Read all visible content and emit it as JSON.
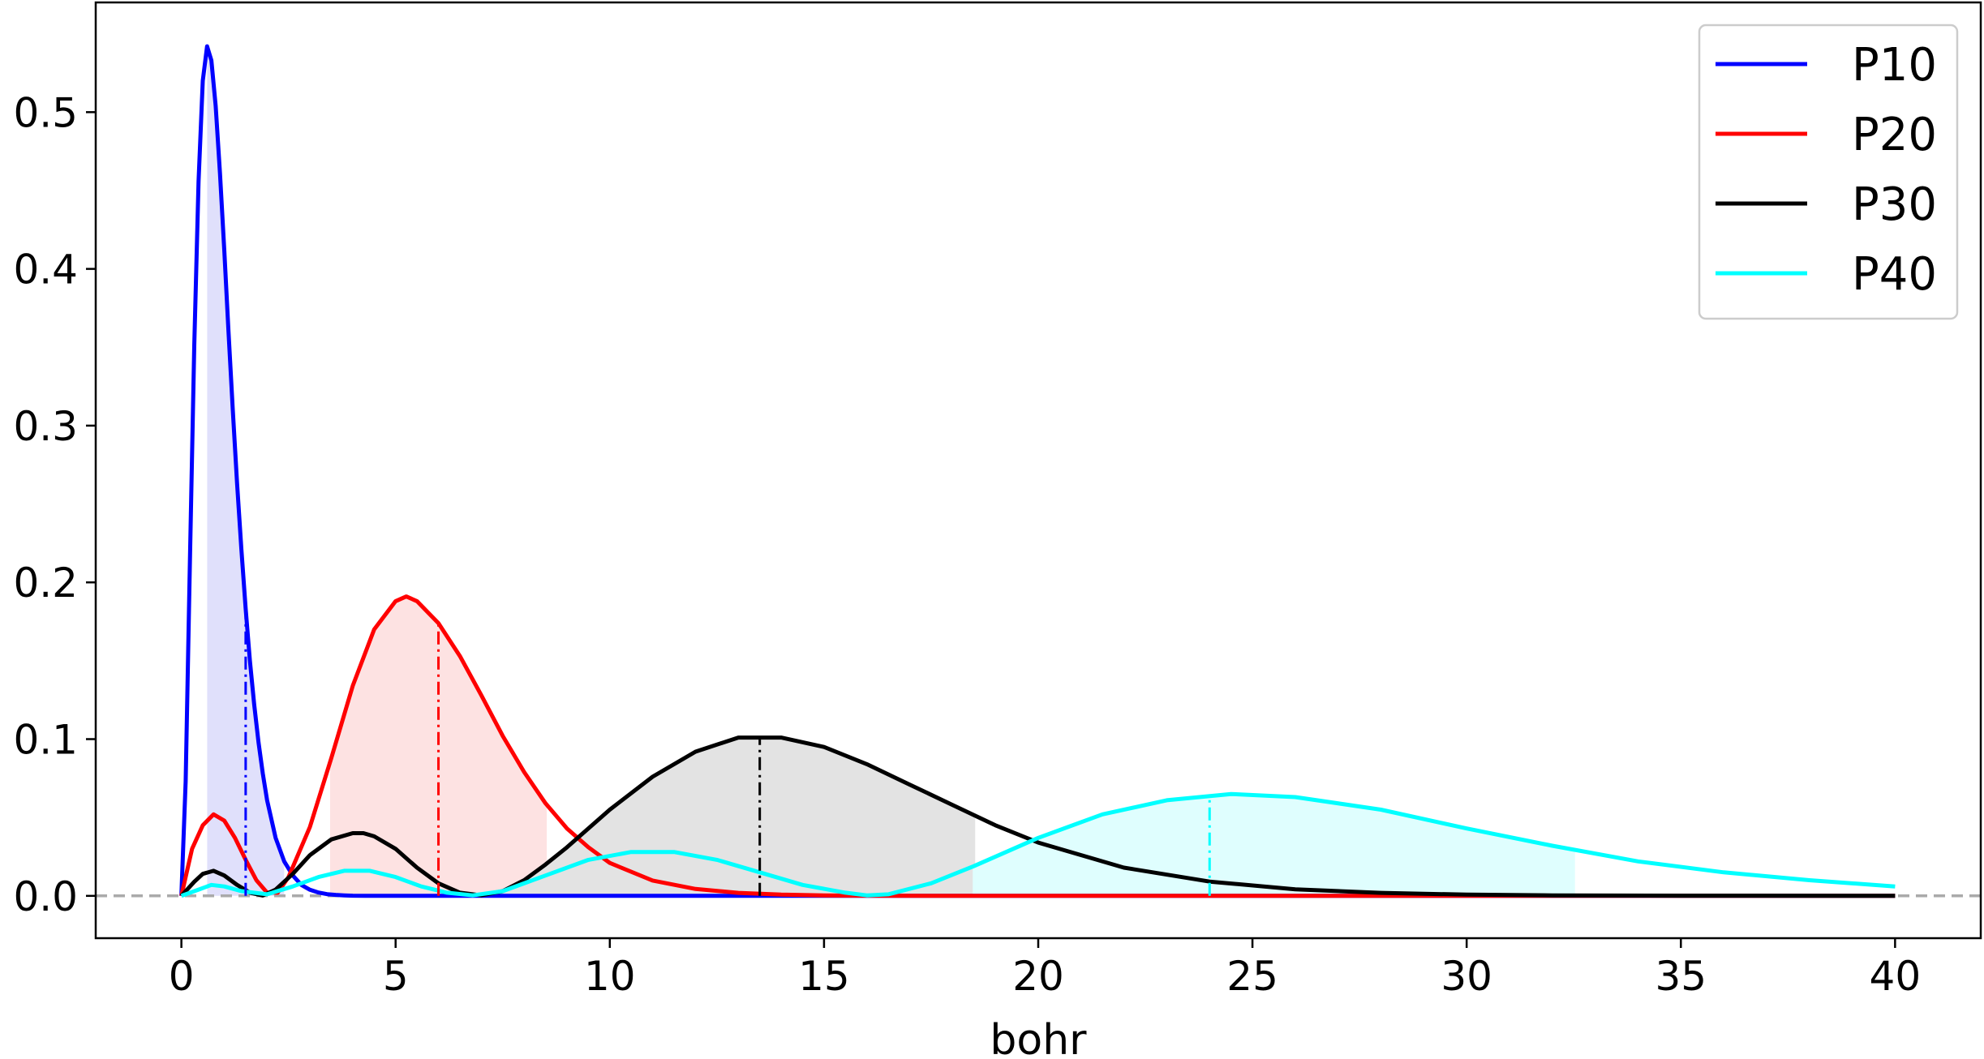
{
  "chart_data": {
    "type": "line",
    "title": "",
    "xlabel": "bohr",
    "ylabel": "",
    "xlim": [
      -2,
      42
    ],
    "ylim": [
      -0.027,
      0.57
    ],
    "xticks": [
      0,
      5,
      10,
      15,
      20,
      25,
      30,
      35,
      40
    ],
    "xtick_labels": [
      "0",
      "5",
      "10",
      "15",
      "20",
      "25",
      "30",
      "35",
      "40"
    ],
    "yticks": [
      0.0,
      0.1,
      0.2,
      0.3,
      0.4,
      0.5
    ],
    "ytick_labels": [
      "0.0",
      "0.1",
      "0.2",
      "0.3",
      "0.4",
      "0.5"
    ],
    "grid": false,
    "legend": "top-right",
    "zero_line": {
      "y": 0,
      "style": "dashed",
      "color": "#aaaaaa"
    },
    "series": [
      {
        "name": "P10",
        "color": "#0000ff",
        "fill": "#e0e0fb",
        "shade_range": [
          0.63,
          2.37
        ],
        "mean_marker_x": 1.5,
        "x": [
          0,
          0.1,
          0.2,
          0.3,
          0.4,
          0.5,
          0.6,
          0.7,
          0.8,
          0.9,
          1.0,
          1.1,
          1.2,
          1.3,
          1.4,
          1.5,
          1.6,
          1.7,
          1.8,
          1.9,
          2.0,
          2.2,
          2.4,
          2.6,
          2.8,
          3.0,
          3.2,
          3.4,
          3.6,
          3.8,
          4.0,
          4.3,
          4.6,
          5.0,
          5.5,
          6.0,
          7.0,
          8.0,
          10,
          15,
          20,
          25,
          30,
          35,
          40
        ],
        "y": [
          0,
          0.073,
          0.215,
          0.351,
          0.456,
          0.52,
          0.542,
          0.533,
          0.504,
          0.461,
          0.412,
          0.36,
          0.31,
          0.263,
          0.221,
          0.183,
          0.15,
          0.122,
          0.098,
          0.078,
          0.061,
          0.037,
          0.022,
          0.013,
          0.007,
          0.0039,
          0.0021,
          0.0011,
          0.0006,
          0.0003,
          0.0001,
          0,
          0,
          0,
          0,
          0,
          0,
          0,
          0,
          0,
          0,
          0,
          0,
          0,
          0
        ]
      },
      {
        "name": "P20",
        "color": "#ff0000",
        "fill": "#fde2e2",
        "shade_range": [
          3.5,
          8.5
        ],
        "mean_marker_x": 6.0,
        "x": [
          0,
          0.25,
          0.5,
          0.75,
          1.0,
          1.25,
          1.5,
          1.75,
          2.0,
          2.25,
          2.5,
          3.0,
          3.5,
          4.0,
          4.5,
          5.0,
          5.25,
          5.5,
          6.0,
          6.5,
          7.0,
          7.5,
          8.0,
          8.5,
          9.0,
          9.5,
          10.0,
          11.0,
          12.0,
          13.0,
          14.0,
          15.0,
          16.0,
          18.0,
          20.0,
          25,
          30,
          35,
          40
        ],
        "y": [
          0,
          0.03,
          0.045,
          0.052,
          0.048,
          0.037,
          0.023,
          0.01,
          0.002,
          0.002,
          0.012,
          0.044,
          0.088,
          0.134,
          0.17,
          0.188,
          0.191,
          0.188,
          0.174,
          0.153,
          0.128,
          0.102,
          0.079,
          0.059,
          0.043,
          0.031,
          0.021,
          0.0098,
          0.0044,
          0.0019,
          0.0008,
          0.0003,
          0.0001,
          0,
          0,
          0,
          0,
          0,
          0
        ]
      },
      {
        "name": "P30",
        "color": "#000000",
        "fill": "#e3e3e3",
        "shade_range": [
          7.0,
          18.5
        ],
        "mean_marker_x": 13.5,
        "x": [
          0,
          0.3,
          0.5,
          0.75,
          1.0,
          1.3,
          1.6,
          1.9,
          2.2,
          2.6,
          3.0,
          3.5,
          4.0,
          4.25,
          4.5,
          5.0,
          5.5,
          6.0,
          6.5,
          7.0,
          7.5,
          8.0,
          8.5,
          9.0,
          10.0,
          11.0,
          12.0,
          13.0,
          14.0,
          15.0,
          16.0,
          17.0,
          18.0,
          19.0,
          20.0,
          22.0,
          24.0,
          26.0,
          28.0,
          30.0,
          32.0,
          35.0,
          40.0
        ],
        "y": [
          0,
          0.009,
          0.014,
          0.016,
          0.013,
          0.007,
          0.002,
          0.0002,
          0.004,
          0.014,
          0.026,
          0.036,
          0.04,
          0.04,
          0.038,
          0.03,
          0.018,
          0.008,
          0.002,
          0.0003,
          0.003,
          0.01,
          0.02,
          0.031,
          0.055,
          0.076,
          0.092,
          0.101,
          0.101,
          0.095,
          0.084,
          0.071,
          0.058,
          0.045,
          0.034,
          0.018,
          0.0091,
          0.0042,
          0.0019,
          0.0008,
          0.0003,
          0.0001,
          0
        ]
      },
      {
        "name": "P40",
        "color": "#00ffff",
        "fill": "#dffefe",
        "shade_range": [
          18.5,
          32.5
        ],
        "mean_marker_x": 24.0,
        "x": [
          0,
          0.4,
          0.7,
          1.0,
          1.4,
          2.0,
          2.6,
          3.2,
          3.8,
          4.4,
          5.0,
          5.6,
          6.2,
          6.8,
          7.5,
          8.5,
          9.5,
          10.5,
          11.5,
          12.5,
          13.5,
          14.5,
          15.5,
          16.0,
          16.5,
          17.5,
          18.5,
          20.0,
          21.5,
          23.0,
          24.5,
          26.0,
          28.0,
          30.0,
          32.0,
          34.0,
          36.0,
          38.0,
          40.0
        ],
        "y": [
          0,
          0.004,
          0.007,
          0.006,
          0.003,
          0.001,
          0.006,
          0.012,
          0.016,
          0.016,
          0.012,
          0.006,
          0.002,
          0.0003,
          0.003,
          0.013,
          0.023,
          0.028,
          0.028,
          0.023,
          0.015,
          0.007,
          0.002,
          0.0003,
          0.001,
          0.008,
          0.019,
          0.037,
          0.052,
          0.061,
          0.065,
          0.063,
          0.055,
          0.043,
          0.032,
          0.022,
          0.015,
          0.01,
          0.006
        ]
      }
    ]
  }
}
